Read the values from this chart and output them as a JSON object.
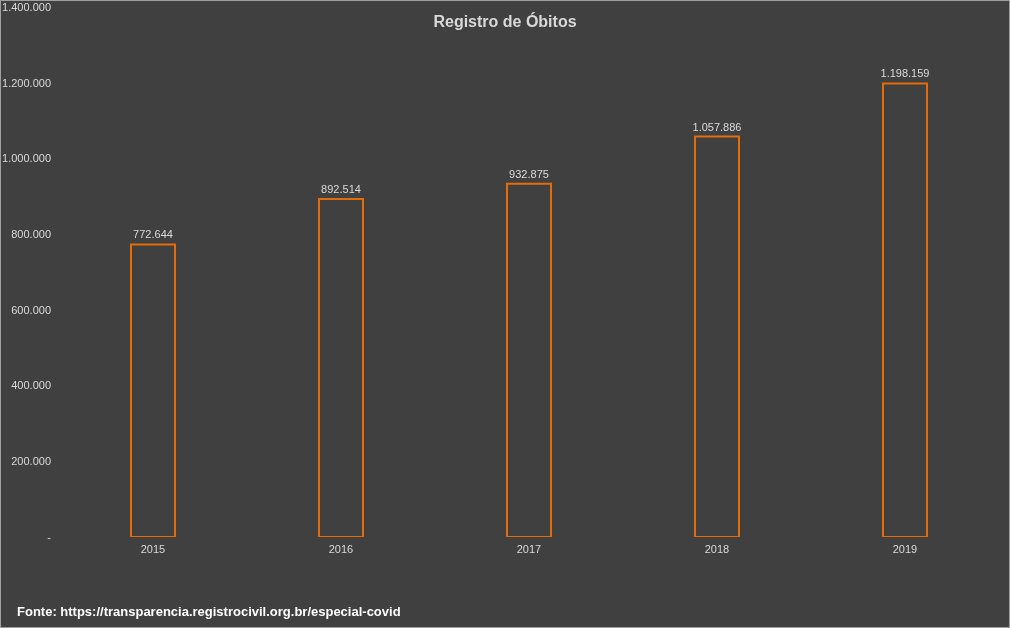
{
  "chart_data": {
    "type": "bar",
    "title": "Registro de Óbitos",
    "categories": [
      "2015",
      "2016",
      "2017",
      "2018",
      "2019"
    ],
    "values": [
      772644,
      892514,
      932875,
      1057886,
      1198159
    ],
    "value_labels": [
      "772.644",
      "892.514",
      "932.875",
      "1.057.886",
      "1.198.159"
    ],
    "color": "#e46c0a",
    "ylim": [
      0,
      1400000
    ],
    "yticks": [
      {
        "value": 0,
        "label": "-"
      },
      {
        "value": 200000,
        "label": "200.000"
      },
      {
        "value": 400000,
        "label": "400.000"
      },
      {
        "value": 600000,
        "label": "600.000"
      },
      {
        "value": 800000,
        "label": "800.000"
      },
      {
        "value": 1000000,
        "label": "1.000.000"
      },
      {
        "value": 1200000,
        "label": "1.200.000"
      },
      {
        "value": 1400000,
        "label": "1.400.000"
      }
    ],
    "grid": false,
    "legend": false,
    "annotations": [
      "Fonte: https://transparencia.registrocivil.org.br/especial-covid"
    ]
  }
}
